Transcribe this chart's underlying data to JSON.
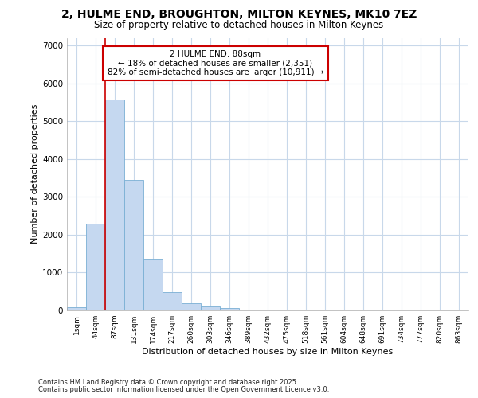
{
  "title_line1": "2, HULME END, BROUGHTON, MILTON KEYNES, MK10 7EZ",
  "title_line2": "Size of property relative to detached houses in Milton Keynes",
  "xlabel": "Distribution of detached houses by size in Milton Keynes",
  "ylabel": "Number of detached properties",
  "categories": [
    "1sqm",
    "44sqm",
    "87sqm",
    "131sqm",
    "174sqm",
    "217sqm",
    "260sqm",
    "303sqm",
    "346sqm",
    "389sqm",
    "432sqm",
    "475sqm",
    "518sqm",
    "561sqm",
    "604sqm",
    "648sqm",
    "691sqm",
    "734sqm",
    "777sqm",
    "820sqm",
    "863sqm"
  ],
  "values": [
    80,
    2300,
    5580,
    3450,
    1350,
    480,
    190,
    110,
    70,
    30,
    5,
    0,
    0,
    0,
    0,
    0,
    0,
    0,
    0,
    0,
    0
  ],
  "bar_color": "#c5d8f0",
  "bar_edge_color": "#7aafd4",
  "vline_index": 2,
  "vline_color": "#cc0000",
  "annotation_line1": "2 HULME END: 88sqm",
  "annotation_line2": "← 18% of detached houses are smaller (2,351)",
  "annotation_line3": "82% of semi-detached houses are larger (10,911) →",
  "ylim": [
    0,
    7200
  ],
  "yticks": [
    0,
    1000,
    2000,
    3000,
    4000,
    5000,
    6000,
    7000
  ],
  "plot_bg": "#ffffff",
  "fig_bg": "#ffffff",
  "grid_color": "#c8d8ea",
  "footer_line1": "Contains HM Land Registry data © Crown copyright and database right 2025.",
  "footer_line2": "Contains public sector information licensed under the Open Government Licence v3.0."
}
